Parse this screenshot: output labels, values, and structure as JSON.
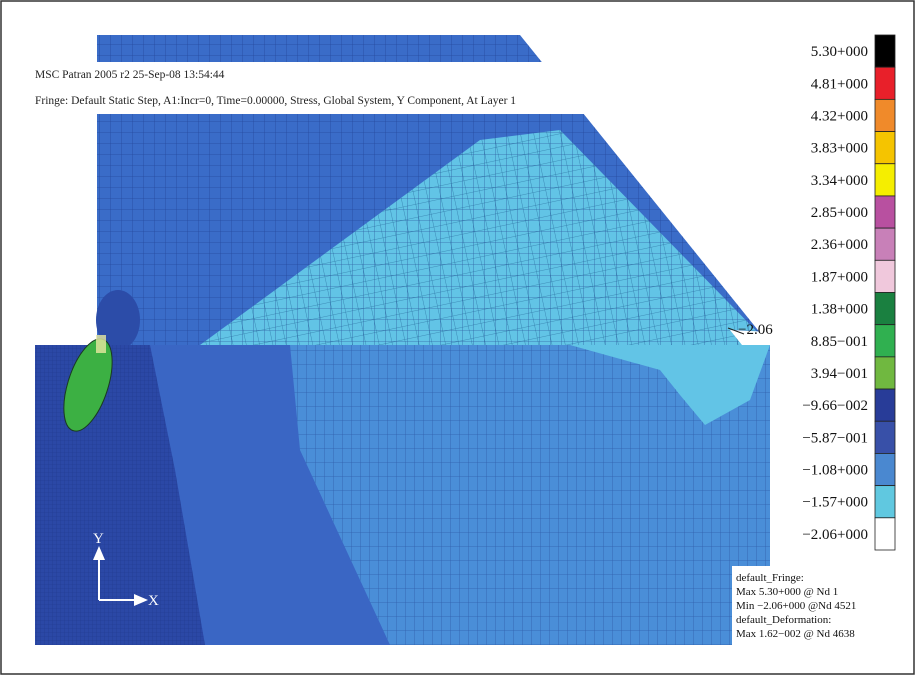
{
  "header": {
    "line1": "MSC Patran 2005 r2 25-Sep-08 13:54:44",
    "line2": "Fringe: Default Static Step, A1:Incr=0, Time=0.00000, Stress, Global System, Y Component, At Layer 1"
  },
  "legend": [
    {
      "label": "5.30+000",
      "color": "#000000"
    },
    {
      "label": "4.81+000",
      "color": "#e8202a"
    },
    {
      "label": "4.32+000",
      "color": "#f08a2a"
    },
    {
      "label": "3.83+000",
      "color": "#f5c400"
    },
    {
      "label": "3.34+000",
      "color": "#f5ee00"
    },
    {
      "label": "2.85+000",
      "color": "#b850a0"
    },
    {
      "label": "2.36+000",
      "color": "#c880b8"
    },
    {
      "label": "1.87+000",
      "color": "#f0c8dc"
    },
    {
      "label": "1.38+000",
      "color": "#1a8040"
    },
    {
      "label": "8.85−001",
      "color": "#30b050"
    },
    {
      "label": "3.94−001",
      "color": "#70b840"
    },
    {
      "label": "−9.66−002",
      "color": "#283c98"
    },
    {
      "label": "−5.87−001",
      "color": "#3850a8"
    },
    {
      "label": "−1.08+000",
      "color": "#4a88d0"
    },
    {
      "label": "−1.57+000",
      "color": "#60c8e0"
    },
    {
      "label": "−2.06+000",
      "color": "#ffffff"
    }
  ],
  "annotation": "−2.06",
  "triad": {
    "y": "Y",
    "x": "X"
  },
  "info": [
    "default_Fringe:",
    "Max 5.30+000 @ Nd 1",
    "Min −2.06+000 @Nd 4521",
    "default_Deformation:",
    "Max 1.62−002 @ Nd 4638"
  ]
}
